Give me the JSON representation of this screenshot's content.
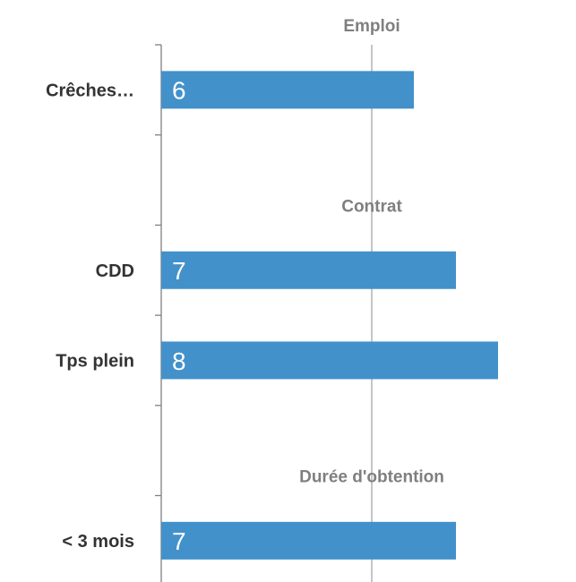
{
  "chart_data": {
    "type": "bar",
    "orientation": "horizontal",
    "groups": [
      {
        "name": "Emploi",
        "categories": [
          "Crêches…"
        ],
        "values": [
          6
        ]
      },
      {
        "name": "Contrat",
        "categories": [
          "CDD",
          "Tps plein"
        ],
        "values": [
          7,
          8
        ]
      },
      {
        "name": "Durée d'obtention",
        "categories": [
          "< 3 mois"
        ],
        "values": [
          7
        ]
      }
    ],
    "color": "#4291ca",
    "xlim": [
      0,
      10
    ],
    "gridlines": [
      5
    ]
  }
}
